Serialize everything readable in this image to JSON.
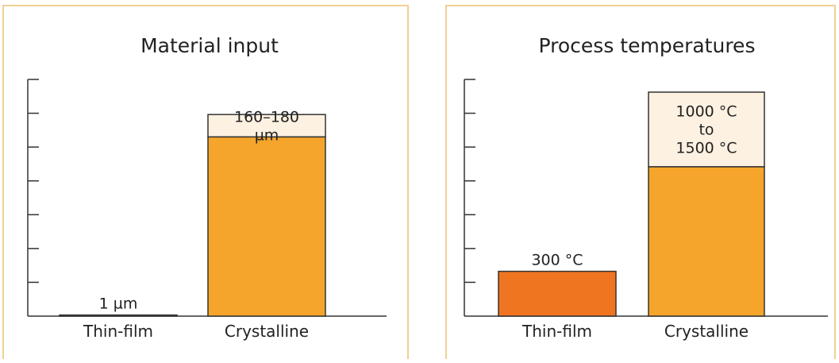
{
  "colors": {
    "thin_film": "#f07520",
    "crystalline": "#f5a52b",
    "range_band": "#fdf1e1",
    "border": "#f3cf93",
    "axis": "#333333"
  },
  "chart_data": [
    {
      "type": "bar",
      "title": "Material input",
      "categories": [
        "Thin-film",
        "Crystalline"
      ],
      "values": [
        1,
        160
      ],
      "range": [
        null,
        [
          160,
          180
        ]
      ],
      "value_labels": [
        "1 µm",
        "160–180\nµm"
      ],
      "ylim": [
        0,
        200
      ],
      "yticks": 7
    },
    {
      "type": "bar",
      "title": "Process temperatures",
      "categories": [
        "Thin-film",
        "Crystalline"
      ],
      "values": [
        300,
        1000
      ],
      "range": [
        null,
        [
          1000,
          1500
        ]
      ],
      "value_labels": [
        "300 °C",
        "1000 °C\nto\n1500 °C"
      ],
      "ylim": [
        0,
        1500
      ],
      "yticks": 7
    }
  ]
}
